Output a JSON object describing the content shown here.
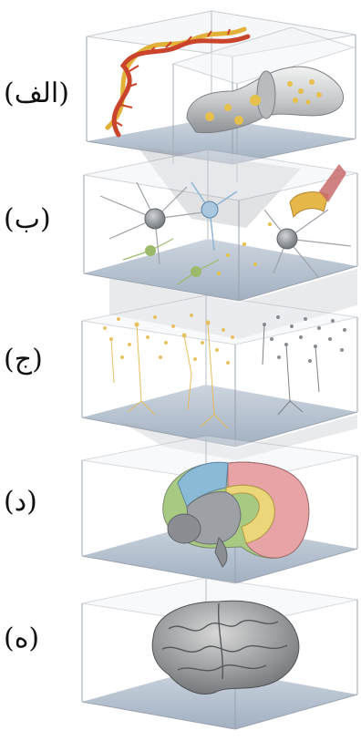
{
  "labels": {
    "a": "(الف)",
    "b": "(ب)",
    "c": "(ج)",
    "d": "(د)",
    "e": "(ه)"
  },
  "colors": {
    "glass_edge": "#9aa3ad",
    "floor": "#aebccc",
    "dna_red": "#c9442b",
    "dna_yellow": "#e2b13a",
    "neuron_gray": "#8e939a",
    "neuron_yellow": "#e6b84a",
    "neuron_green": "#9bbb6a",
    "neuron_blue": "#8fb6d6",
    "brain_pink": "#e7a3a6",
    "brain_yellow": "#ecd67a",
    "brain_blue": "#8bbad6",
    "brain_green": "#a8c982",
    "brain_gray": "#9da1a6"
  },
  "icons": [
    "dna-helix-icon",
    "synapse-icon",
    "neuron-cluster-icon",
    "neural-network-icon",
    "brain-section-icon",
    "whole-brain-icon"
  ]
}
